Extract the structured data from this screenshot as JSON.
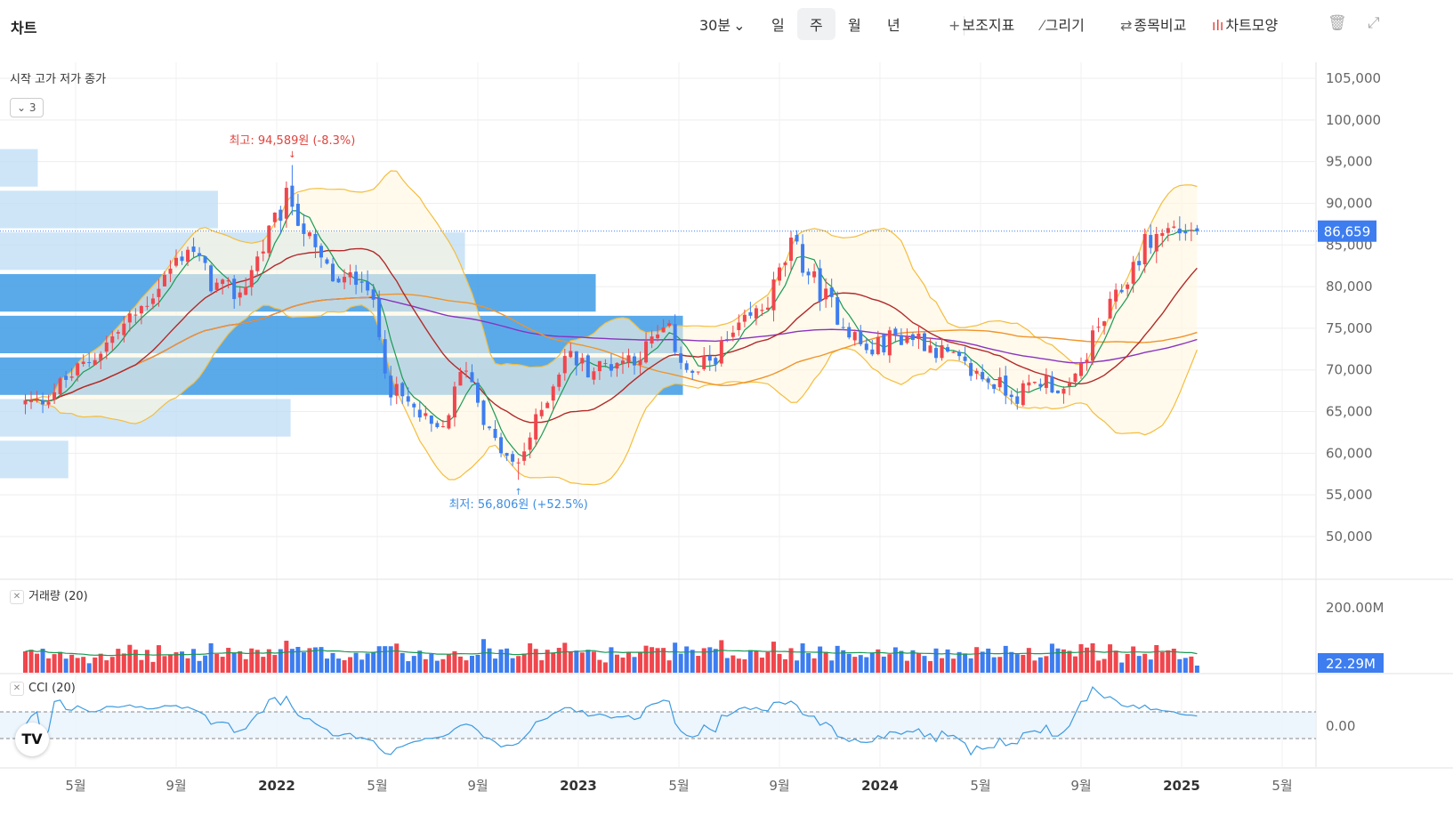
{
  "header": {
    "title": "차트",
    "interval": "30분",
    "periods": [
      "일",
      "주",
      "월",
      "년"
    ],
    "selected_period": "주",
    "tools": [
      "보조지표",
      "그리기",
      "종목비교",
      "차트모양"
    ]
  },
  "legend": {
    "ohlc_label": "시작 고가 저가 종가",
    "collapse_count": "3"
  },
  "annotations": {
    "high": "최고: 94,589원 (-8.3%)",
    "low": "최저: 56,806원 (+52.5%)"
  },
  "price_axis": {
    "ticks": [
      "105,000",
      "100,000",
      "95,000",
      "90,000",
      "85,000",
      "80,000",
      "75,000",
      "70,000",
      "65,000",
      "60,000",
      "55,000",
      "50,000"
    ],
    "last_price_label": "86,659"
  },
  "volume_pane": {
    "label": "거래량 (20)",
    "axis_tick": "200.00M",
    "last_volume_label": "22.29M"
  },
  "cci_pane": {
    "label": "CCI (20)",
    "axis_tick": "0.00"
  },
  "time_axis": {
    "ticks": [
      "5월",
      "9월",
      "2022",
      "5월",
      "9월",
      "2023",
      "5월",
      "9월",
      "2024",
      "5월",
      "9월",
      "2025",
      "5월"
    ]
  },
  "logo": "TV",
  "colors": {
    "up": "#f0464d",
    "down": "#3d7df0",
    "ma5": "#1a9a55",
    "ma20": "#b22a2a",
    "ma60": "#f0932b",
    "ma120": "#8a33c0",
    "bollinger": "#f5bd3c",
    "cci": "#3d9be0",
    "last_price_badge": "#3d7df0"
  },
  "chart_data": {
    "type": "candlestick",
    "interval": "weekly",
    "ylim": [
      45000,
      106000
    ],
    "max_point": {
      "value": 94589,
      "period": "2022-01"
    },
    "min_point": {
      "value": 56806,
      "period": "2022-10"
    },
    "last_close": 86659,
    "last_volume": "22.29M",
    "close_anchors": [
      [
        "2021-03",
        66000
      ],
      [
        "2021-05",
        71000
      ],
      [
        "2021-07",
        77000
      ],
      [
        "2021-09",
        85000
      ],
      [
        "2021-10",
        80000
      ],
      [
        "2021-11",
        79000
      ],
      [
        "2021-12",
        85000
      ],
      [
        "2022-01",
        91000
      ],
      [
        "2022-02",
        84000
      ],
      [
        "2022-03",
        80000
      ],
      [
        "2022-04",
        82000
      ],
      [
        "2022-05",
        68000
      ],
      [
        "2022-06",
        65000
      ],
      [
        "2022-07",
        62000
      ],
      [
        "2022-08",
        71000
      ],
      [
        "2022-09",
        62000
      ],
      [
        "2022-10",
        58000
      ],
      [
        "2022-11",
        65000
      ],
      [
        "2022-12",
        72000
      ],
      [
        "2023-01",
        70000
      ],
      [
        "2023-03",
        72000
      ],
      [
        "2023-04",
        75000
      ],
      [
        "2023-05",
        69000
      ],
      [
        "2023-07",
        75000
      ],
      [
        "2023-08",
        78000
      ],
      [
        "2023-09",
        85000
      ],
      [
        "2023-10",
        80000
      ],
      [
        "2023-11",
        76000
      ],
      [
        "2023-12",
        72000
      ],
      [
        "2024-01",
        74000
      ],
      [
        "2024-02",
        74000
      ],
      [
        "2024-03",
        72000
      ],
      [
        "2024-04",
        70000
      ],
      [
        "2024-06",
        67000
      ],
      [
        "2024-07",
        69000
      ],
      [
        "2024-08",
        67000
      ],
      [
        "2024-09",
        74000
      ],
      [
        "2024-10",
        79000
      ],
      [
        "2024-11",
        85000
      ],
      [
        "2024-12",
        87000
      ],
      [
        "2025-01",
        86659
      ]
    ],
    "volume_profile": [
      {
        "price_from": 92000,
        "price_to": 96500,
        "relative": 0.026
      },
      {
        "price_from": 87000,
        "price_to": 91500,
        "relative": 0.15
      },
      {
        "price_from": 82000,
        "price_to": 86500,
        "relative": 0.32
      },
      {
        "price_from": 77000,
        "price_to": 81500,
        "relative": 0.41
      },
      {
        "price_from": 72000,
        "price_to": 76500,
        "relative": 0.47
      },
      {
        "price_from": 67000,
        "price_to": 71500,
        "relative": 0.47
      },
      {
        "price_from": 62000,
        "price_to": 66500,
        "relative": 0.2
      },
      {
        "price_from": 57000,
        "price_to": 61500,
        "relative": 0.047
      }
    ],
    "indicators": [
      "MA5",
      "MA20",
      "MA60",
      "MA120",
      "Bollinger(20)",
      "Volume(20)",
      "CCI(20)"
    ]
  }
}
